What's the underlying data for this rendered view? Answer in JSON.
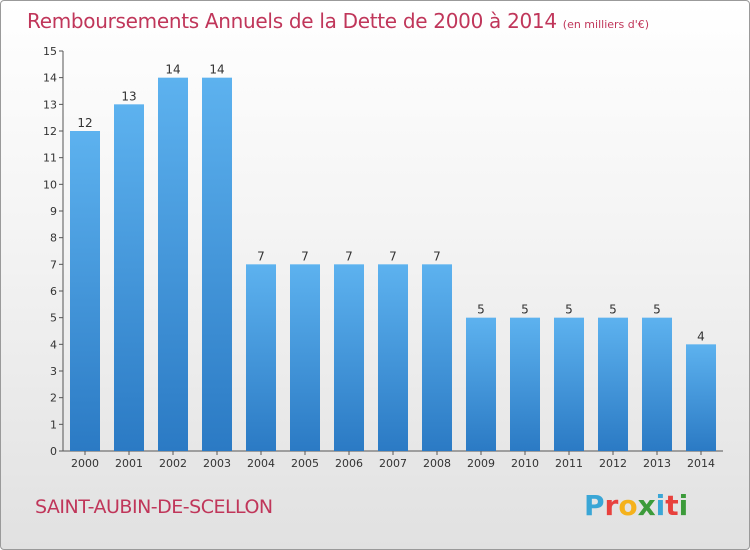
{
  "title": "Remboursements Annuels de la Dette de 2000 à 2014",
  "subtitle": "(en milliers d'€)",
  "commune": "SAINT-AUBIN-DE-SCELLON",
  "logo": {
    "letters": [
      "P",
      "r",
      "o",
      "x",
      "i",
      "t",
      "i"
    ],
    "colors": [
      "#3aa6d6",
      "#e8413d",
      "#f5b21c",
      "#3c9b3a",
      "#3aa6d6",
      "#e8413d",
      "#3c9b3a"
    ]
  },
  "chart_data": {
    "type": "bar",
    "categories": [
      "2000",
      "2001",
      "2002",
      "2003",
      "2004",
      "2005",
      "2006",
      "2007",
      "2008",
      "2009",
      "2010",
      "2011",
      "2012",
      "2013",
      "2014"
    ],
    "values": [
      12,
      13,
      14,
      14,
      7,
      7,
      7,
      7,
      7,
      5,
      5,
      5,
      5,
      5,
      4
    ],
    "title": "Remboursements Annuels de la Dette de 2000 à 2014",
    "ylim": [
      0,
      15
    ],
    "yticks": [
      0,
      1,
      2,
      3,
      4,
      5,
      6,
      7,
      8,
      9,
      10,
      11,
      12,
      13,
      14,
      15
    ],
    "grid": false,
    "bar_color": "#4a9fe2"
  }
}
